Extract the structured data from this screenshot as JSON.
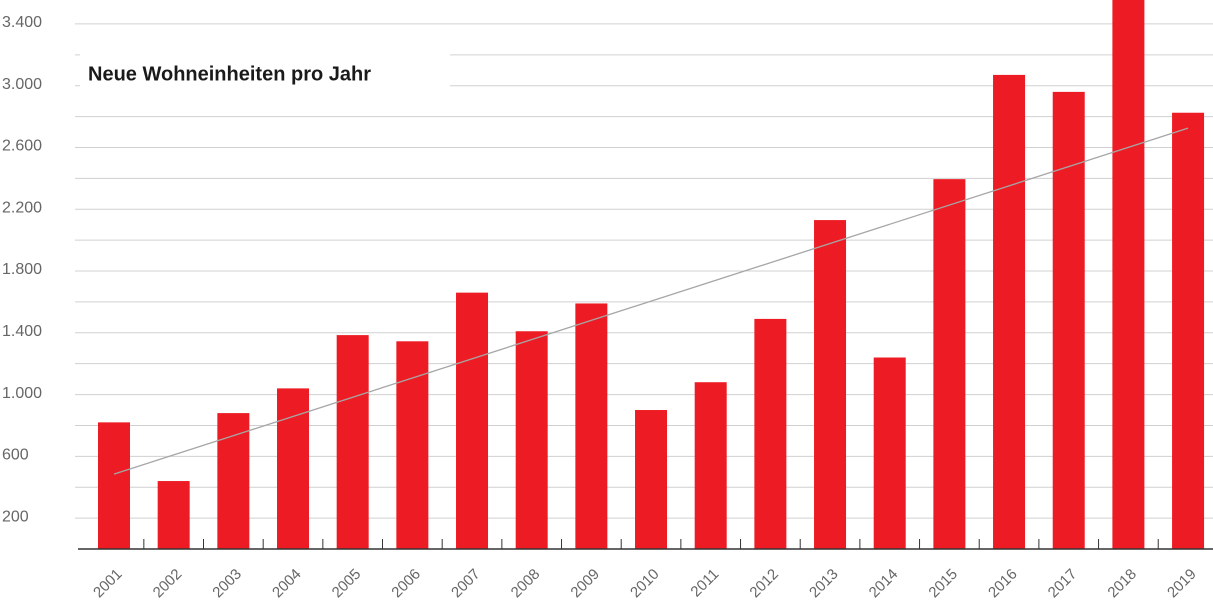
{
  "chart_data": {
    "type": "bar",
    "title": "Neue Wohneinheiten pro Jahr",
    "categories": [
      "2001",
      "2002",
      "2003",
      "2004",
      "2005",
      "2006",
      "2007",
      "2008",
      "2009",
      "2010",
      "2011",
      "2012",
      "2013",
      "2014",
      "2015",
      "2016",
      "2017",
      "2018",
      "2019"
    ],
    "values": [
      820,
      440,
      880,
      1040,
      1385,
      1345,
      1660,
      1410,
      1590,
      900,
      1080,
      1490,
      2130,
      1240,
      2395,
      3070,
      2960,
      3600,
      2825
    ],
    "color": "#ed1c24",
    "trend_line": [
      485,
      2725
    ],
    "trend_color": "#a6a6a6",
    "ylim": [
      0,
      3555
    ],
    "yticks": [
      {
        "value": 200,
        "label": "200"
      },
      {
        "value": 600,
        "label": "600"
      },
      {
        "value": 1000,
        "label": "1.000"
      },
      {
        "value": 1400,
        "label": "1.400"
      },
      {
        "value": 1800,
        "label": "1.800"
      },
      {
        "value": 2200,
        "label": "2.200"
      },
      {
        "value": 2600,
        "label": "2.600"
      },
      {
        "value": 3000,
        "label": "3.000"
      },
      {
        "value": 3400,
        "label": "3.400"
      }
    ],
    "minor_grid": [
      400,
      800,
      1200,
      1600,
      2000,
      2400,
      2800,
      3200
    ],
    "grid": true
  }
}
